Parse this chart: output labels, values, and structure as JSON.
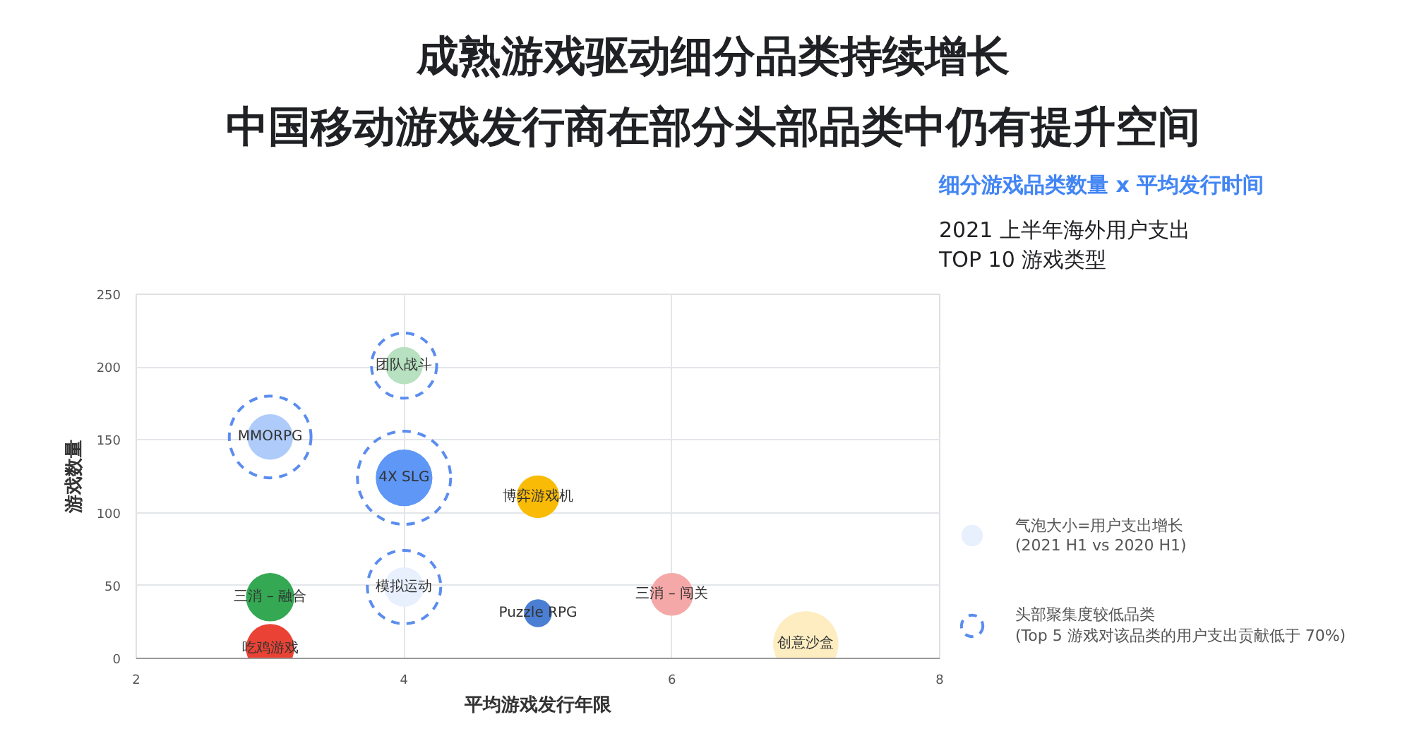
{
  "chart_data": {
    "type": "bubble",
    "title": "成熟游戏驱动细分品类持续增长",
    "subtitle": "中国移动游戏发行商在部分头部品类中仍有提升空间",
    "xlabel": "平均游戏发行年限",
    "ylabel": "游戏数量",
    "xlim": [
      2,
      8
    ],
    "xticks": [
      2,
      4,
      6,
      8
    ],
    "ylim": [
      0,
      250
    ],
    "yticks": [
      0,
      50,
      100,
      150,
      200,
      250
    ],
    "grid": true,
    "legend": "right",
    "series": [
      {
        "name": "气泡大小=用户支出增长\n(2021 H1 vs 2020 H1)",
        "color": "#e8eaed",
        "x": [
          4,
          3,
          4,
          5,
          3,
          3,
          4,
          5,
          6,
          7
        ],
        "values": [
          201,
          152,
          124,
          111,
          42,
          7,
          49,
          31,
          44,
          10
        ],
        "sizes": [
          0.16,
          0.24,
          0.37,
          0.21,
          0.27,
          0.27,
          0.18,
          0.09,
          0.21,
          0.49
        ],
        "colors": [
          "#b7e1c0",
          "#aecbfa",
          "#5e97f6",
          "#f9bb06",
          "#34a853",
          "#ea4335",
          "#e8f0fe",
          "#4a7fd4",
          "#f4a9a8",
          "#fdedc1"
        ]
      },
      {
        "name": "头部聚集度较低品类\n(Top 5 游戏对该品类的用户支出贡献低于 70%)",
        "color": "#5b8def",
        "line_style": "dashed",
        "x": [
          4,
          3,
          4,
          4
        ],
        "values": [
          201,
          152,
          124,
          49
        ],
        "sizes": [
          0.49,
          0.77,
          1,
          0.62
        ]
      }
    ],
    "annotations": [
      "细分游戏品类数量 x 平均发行时间",
      "2021 上半年海外用户支出\nTOP 10 游戏类型",
      {
        "text": "团队战斗",
        "x": 4,
        "y": 201
      },
      {
        "text": "MMORPG",
        "x": 3,
        "y": 152
      },
      {
        "text": "4X SLG",
        "x": 4,
        "y": 124
      },
      {
        "text": "博弈游戏机",
        "x": 5,
        "y": 111
      },
      {
        "text": "三消 – 融合",
        "x": 3,
        "y": 42
      },
      {
        "text": "吃鸡游戏",
        "x": 3,
        "y": 7
      },
      {
        "text": "模拟运动",
        "x": 4,
        "y": 49
      },
      {
        "text": "Puzzle RPG",
        "x": 5,
        "y": 31
      },
      {
        "text": "三消 – 闯关",
        "x": 6,
        "y": 44
      },
      {
        "text": "创意沙盒",
        "x": 7,
        "y": 10
      }
    ]
  }
}
